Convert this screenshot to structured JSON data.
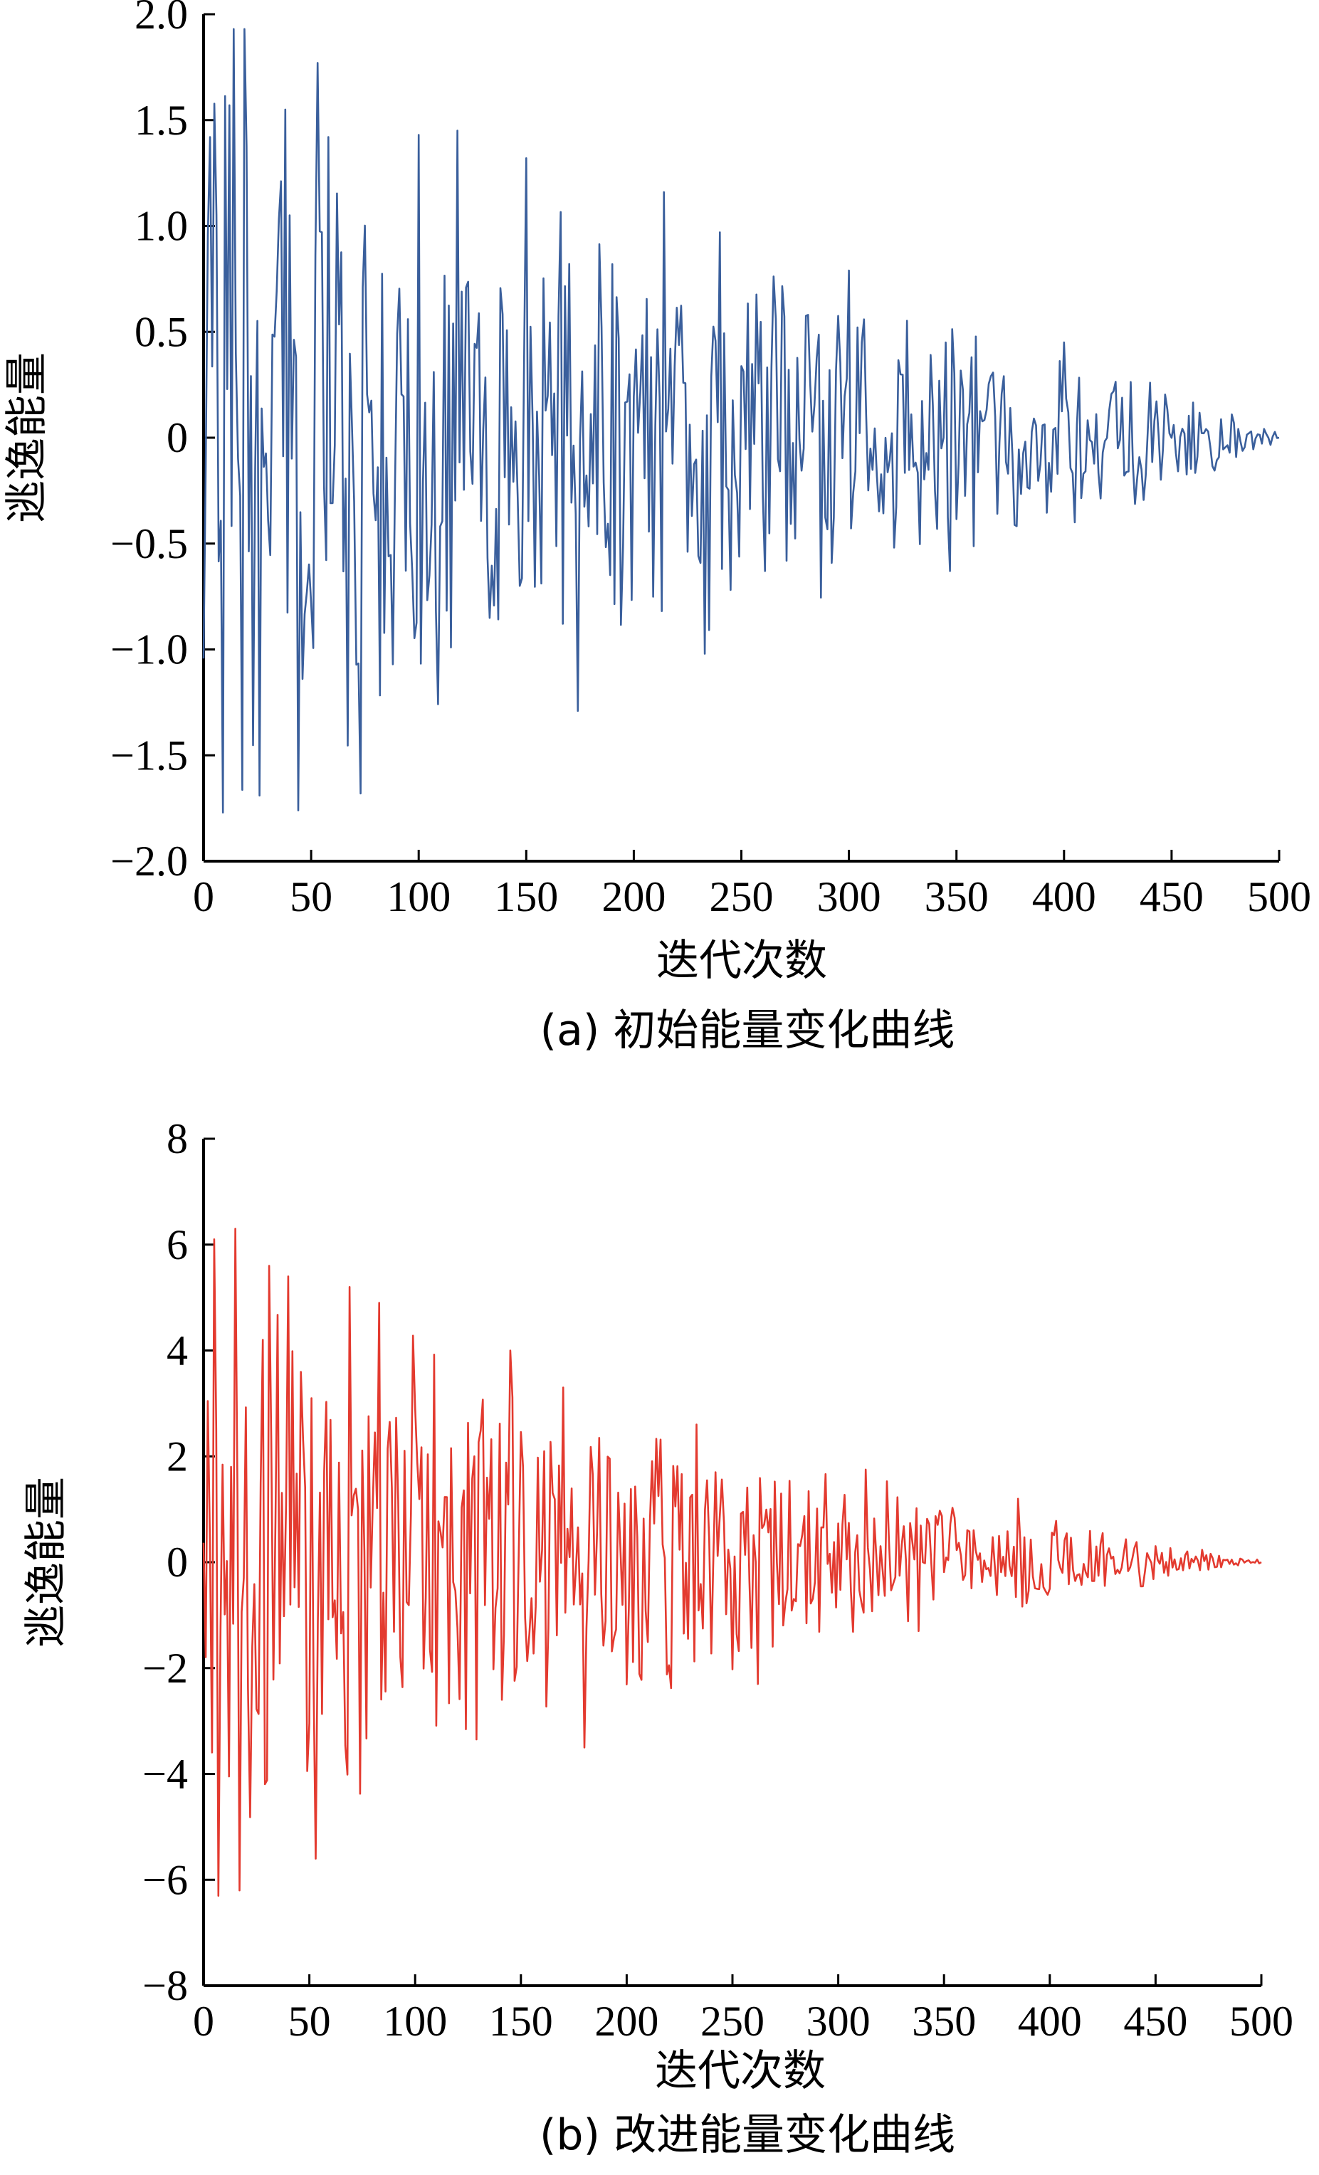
{
  "chart_data": [
    {
      "type": "line",
      "caption": "(a) 初始能量变化曲线",
      "xlabel": "迭代次数",
      "ylabel": "逃逸能量",
      "xlim": [
        0,
        500
      ],
      "ylim": [
        -2.0,
        2.0
      ],
      "xticks": [
        "0",
        "50",
        "100",
        "150",
        "200",
        "250",
        "300",
        "350",
        "400",
        "450",
        "500"
      ],
      "yticks": [
        "2.0",
        "1.5",
        "1.0",
        "0.5",
        "0",
        "−0.5",
        "−1.0",
        "−1.5",
        "−2.0"
      ],
      "grid": false,
      "color": "#3a5f9c",
      "envelope": [
        [
          0,
          1.95
        ],
        [
          20,
          1.9
        ],
        [
          50,
          1.8
        ],
        [
          100,
          1.5
        ],
        [
          150,
          1.35
        ],
        [
          200,
          1.15
        ],
        [
          250,
          0.95
        ],
        [
          300,
          0.8
        ],
        [
          350,
          0.65
        ],
        [
          400,
          0.45
        ],
        [
          450,
          0.3
        ],
        [
          480,
          0.12
        ],
        [
          500,
          0.03
        ]
      ],
      "peaks": [
        {
          "x": 3,
          "y": 1.42
        },
        {
          "x": 9,
          "y": -1.77
        },
        {
          "x": 12,
          "y": 1.57
        },
        {
          "x": 14,
          "y": 1.93
        },
        {
          "x": 19,
          "y": 1.93
        },
        {
          "x": 26,
          "y": -1.69
        },
        {
          "x": 38,
          "y": 1.55
        },
        {
          "x": 44,
          "y": -1.76
        },
        {
          "x": 53,
          "y": 1.77
        },
        {
          "x": 58,
          "y": 1.42
        },
        {
          "x": 73,
          "y": -1.68
        },
        {
          "x": 100,
          "y": 1.43
        },
        {
          "x": 118,
          "y": 1.45
        },
        {
          "x": 150,
          "y": 1.32
        },
        {
          "x": 174,
          "y": -1.29
        },
        {
          "x": 214,
          "y": 1.16
        },
        {
          "x": 233,
          "y": -1.02
        },
        {
          "x": 240,
          "y": 0.97
        },
        {
          "x": 300,
          "y": 0.79
        },
        {
          "x": 347,
          "y": -0.63
        },
        {
          "x": 400,
          "y": 0.45
        },
        {
          "x": 440,
          "y": 0.26
        }
      ],
      "series": [
        {
          "values": []
        }
      ]
    },
    {
      "type": "line",
      "caption": "(b) 改进能量变化曲线",
      "xlabel": "迭代次数",
      "ylabel": "逃逸能量",
      "xlim": [
        0,
        500
      ],
      "ylim": [
        -8,
        8
      ],
      "xticks": [
        "0",
        "50",
        "100",
        "150",
        "200",
        "250",
        "300",
        "350",
        "400",
        "450",
        "500"
      ],
      "yticks": [
        "8",
        "6",
        "4",
        "2",
        "0",
        "−2",
        "−4",
        "−6",
        "−8"
      ],
      "grid": false,
      "color": "#e33a2f",
      "envelope": [
        [
          0,
          6.3
        ],
        [
          20,
          6.1
        ],
        [
          50,
          5.5
        ],
        [
          100,
          4.9
        ],
        [
          150,
          4.0
        ],
        [
          200,
          3.2
        ],
        [
          250,
          2.6
        ],
        [
          300,
          1.8
        ],
        [
          350,
          1.3
        ],
        [
          400,
          0.9
        ],
        [
          450,
          0.45
        ],
        [
          480,
          0.2
        ],
        [
          500,
          0.05
        ]
      ],
      "peaks": [
        {
          "x": 5,
          "y": 6.1
        },
        {
          "x": 7,
          "y": -6.3
        },
        {
          "x": 15,
          "y": 6.3
        },
        {
          "x": 17,
          "y": -6.2
        },
        {
          "x": 31,
          "y": 5.6
        },
        {
          "x": 40,
          "y": 5.4
        },
        {
          "x": 53,
          "y": -5.6
        },
        {
          "x": 69,
          "y": 5.2
        },
        {
          "x": 83,
          "y": 4.9
        },
        {
          "x": 145,
          "y": 4.0
        },
        {
          "x": 170,
          "y": 3.3
        },
        {
          "x": 180,
          "y": -3.5
        },
        {
          "x": 233,
          "y": 2.6
        },
        {
          "x": 262,
          "y": -2.3
        },
        {
          "x": 313,
          "y": 1.75
        },
        {
          "x": 338,
          "y": -1.3
        },
        {
          "x": 385,
          "y": 1.2
        },
        {
          "x": 425,
          "y": 0.55
        }
      ],
      "series": [
        {
          "values": []
        }
      ]
    }
  ]
}
